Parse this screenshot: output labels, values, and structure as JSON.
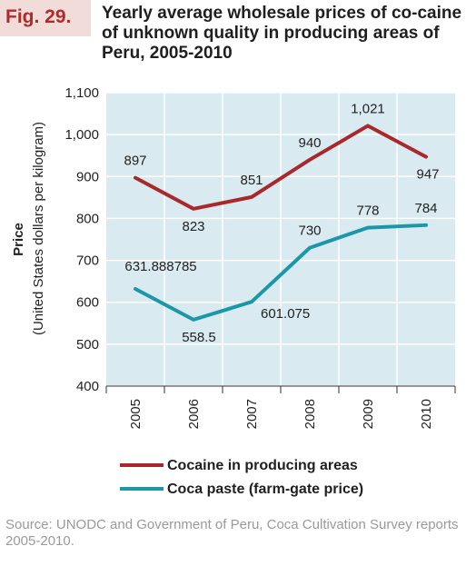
{
  "figure": {
    "number": "Fig. 29.",
    "title": "Yearly average wholesale prices of co-caine of unknown quality in producing areas of Peru, 2005-2010",
    "source": "Source: UNODC and Government of Peru, Coca Cultivation Survey reports 2005-2010."
  },
  "chart_data": {
    "type": "line",
    "x": [
      "2005",
      "2006",
      "2007",
      "2008",
      "2009",
      "2010"
    ],
    "ylabel": "Price",
    "ylabel_sub": "(United States dollars per kilogram)",
    "ylim": [
      400,
      1100
    ],
    "yticks": [
      "400",
      "500",
      "600",
      "700",
      "800",
      "900",
      "1,000",
      "1,100"
    ],
    "grid": true,
    "legend_position": "bottom",
    "plot_background": "#d9eaf0",
    "series": [
      {
        "name": "Cocaine in producing areas",
        "color": "#a8282c",
        "values": [
          897,
          823,
          851,
          940,
          1021,
          947
        ],
        "labels": [
          "897",
          "823",
          "851",
          "940",
          "1,021",
          "947"
        ]
      },
      {
        "name": "Coca paste (farm-gate price)",
        "color": "#1b97a8",
        "values": [
          631.888785,
          558.5,
          601.075,
          730,
          778,
          784
        ],
        "labels": [
          "631.888785",
          "558.5",
          "601.075",
          "730",
          "778",
          "784"
        ]
      }
    ]
  }
}
